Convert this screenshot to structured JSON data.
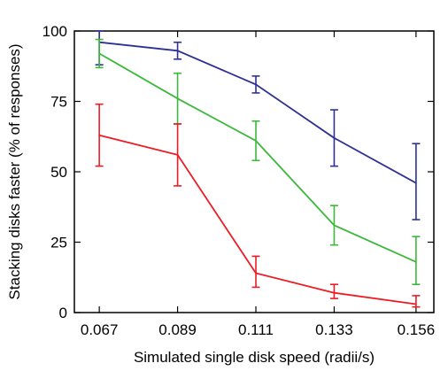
{
  "chart_data": {
    "type": "line",
    "title": "",
    "xlabel": "Simulated single disk speed (radii/s)",
    "ylabel": "Stacking disks faster (% of responses)",
    "x_ticks": [
      "0.067",
      "0.089",
      "0.111",
      "0.133",
      "0.156"
    ],
    "x": [
      0.067,
      0.089,
      0.111,
      0.133,
      0.156
    ],
    "xlim": [
      0.06,
      0.161
    ],
    "ylim": [
      0,
      100
    ],
    "y_ticks": [
      0,
      25,
      50,
      75,
      100
    ],
    "grid": false,
    "legend": "none",
    "series": [
      {
        "color": "#2e3192",
        "values": [
          96,
          93,
          81,
          62,
          46
        ],
        "err_low": [
          88,
          90,
          78,
          52,
          33
        ],
        "err_high": [
          100,
          96,
          84,
          72,
          60
        ]
      },
      {
        "color": "#3cb83c",
        "values": [
          92,
          76,
          61,
          31,
          18
        ],
        "err_low": [
          87,
          67,
          54,
          24,
          10
        ],
        "err_high": [
          97,
          85,
          68,
          38,
          27
        ]
      },
      {
        "color": "#ed1c24",
        "values": [
          63,
          56,
          14,
          7,
          3
        ],
        "err_low": [
          52,
          45,
          9,
          5,
          2
        ],
        "err_high": [
          74,
          67,
          20,
          10,
          6
        ]
      }
    ]
  }
}
